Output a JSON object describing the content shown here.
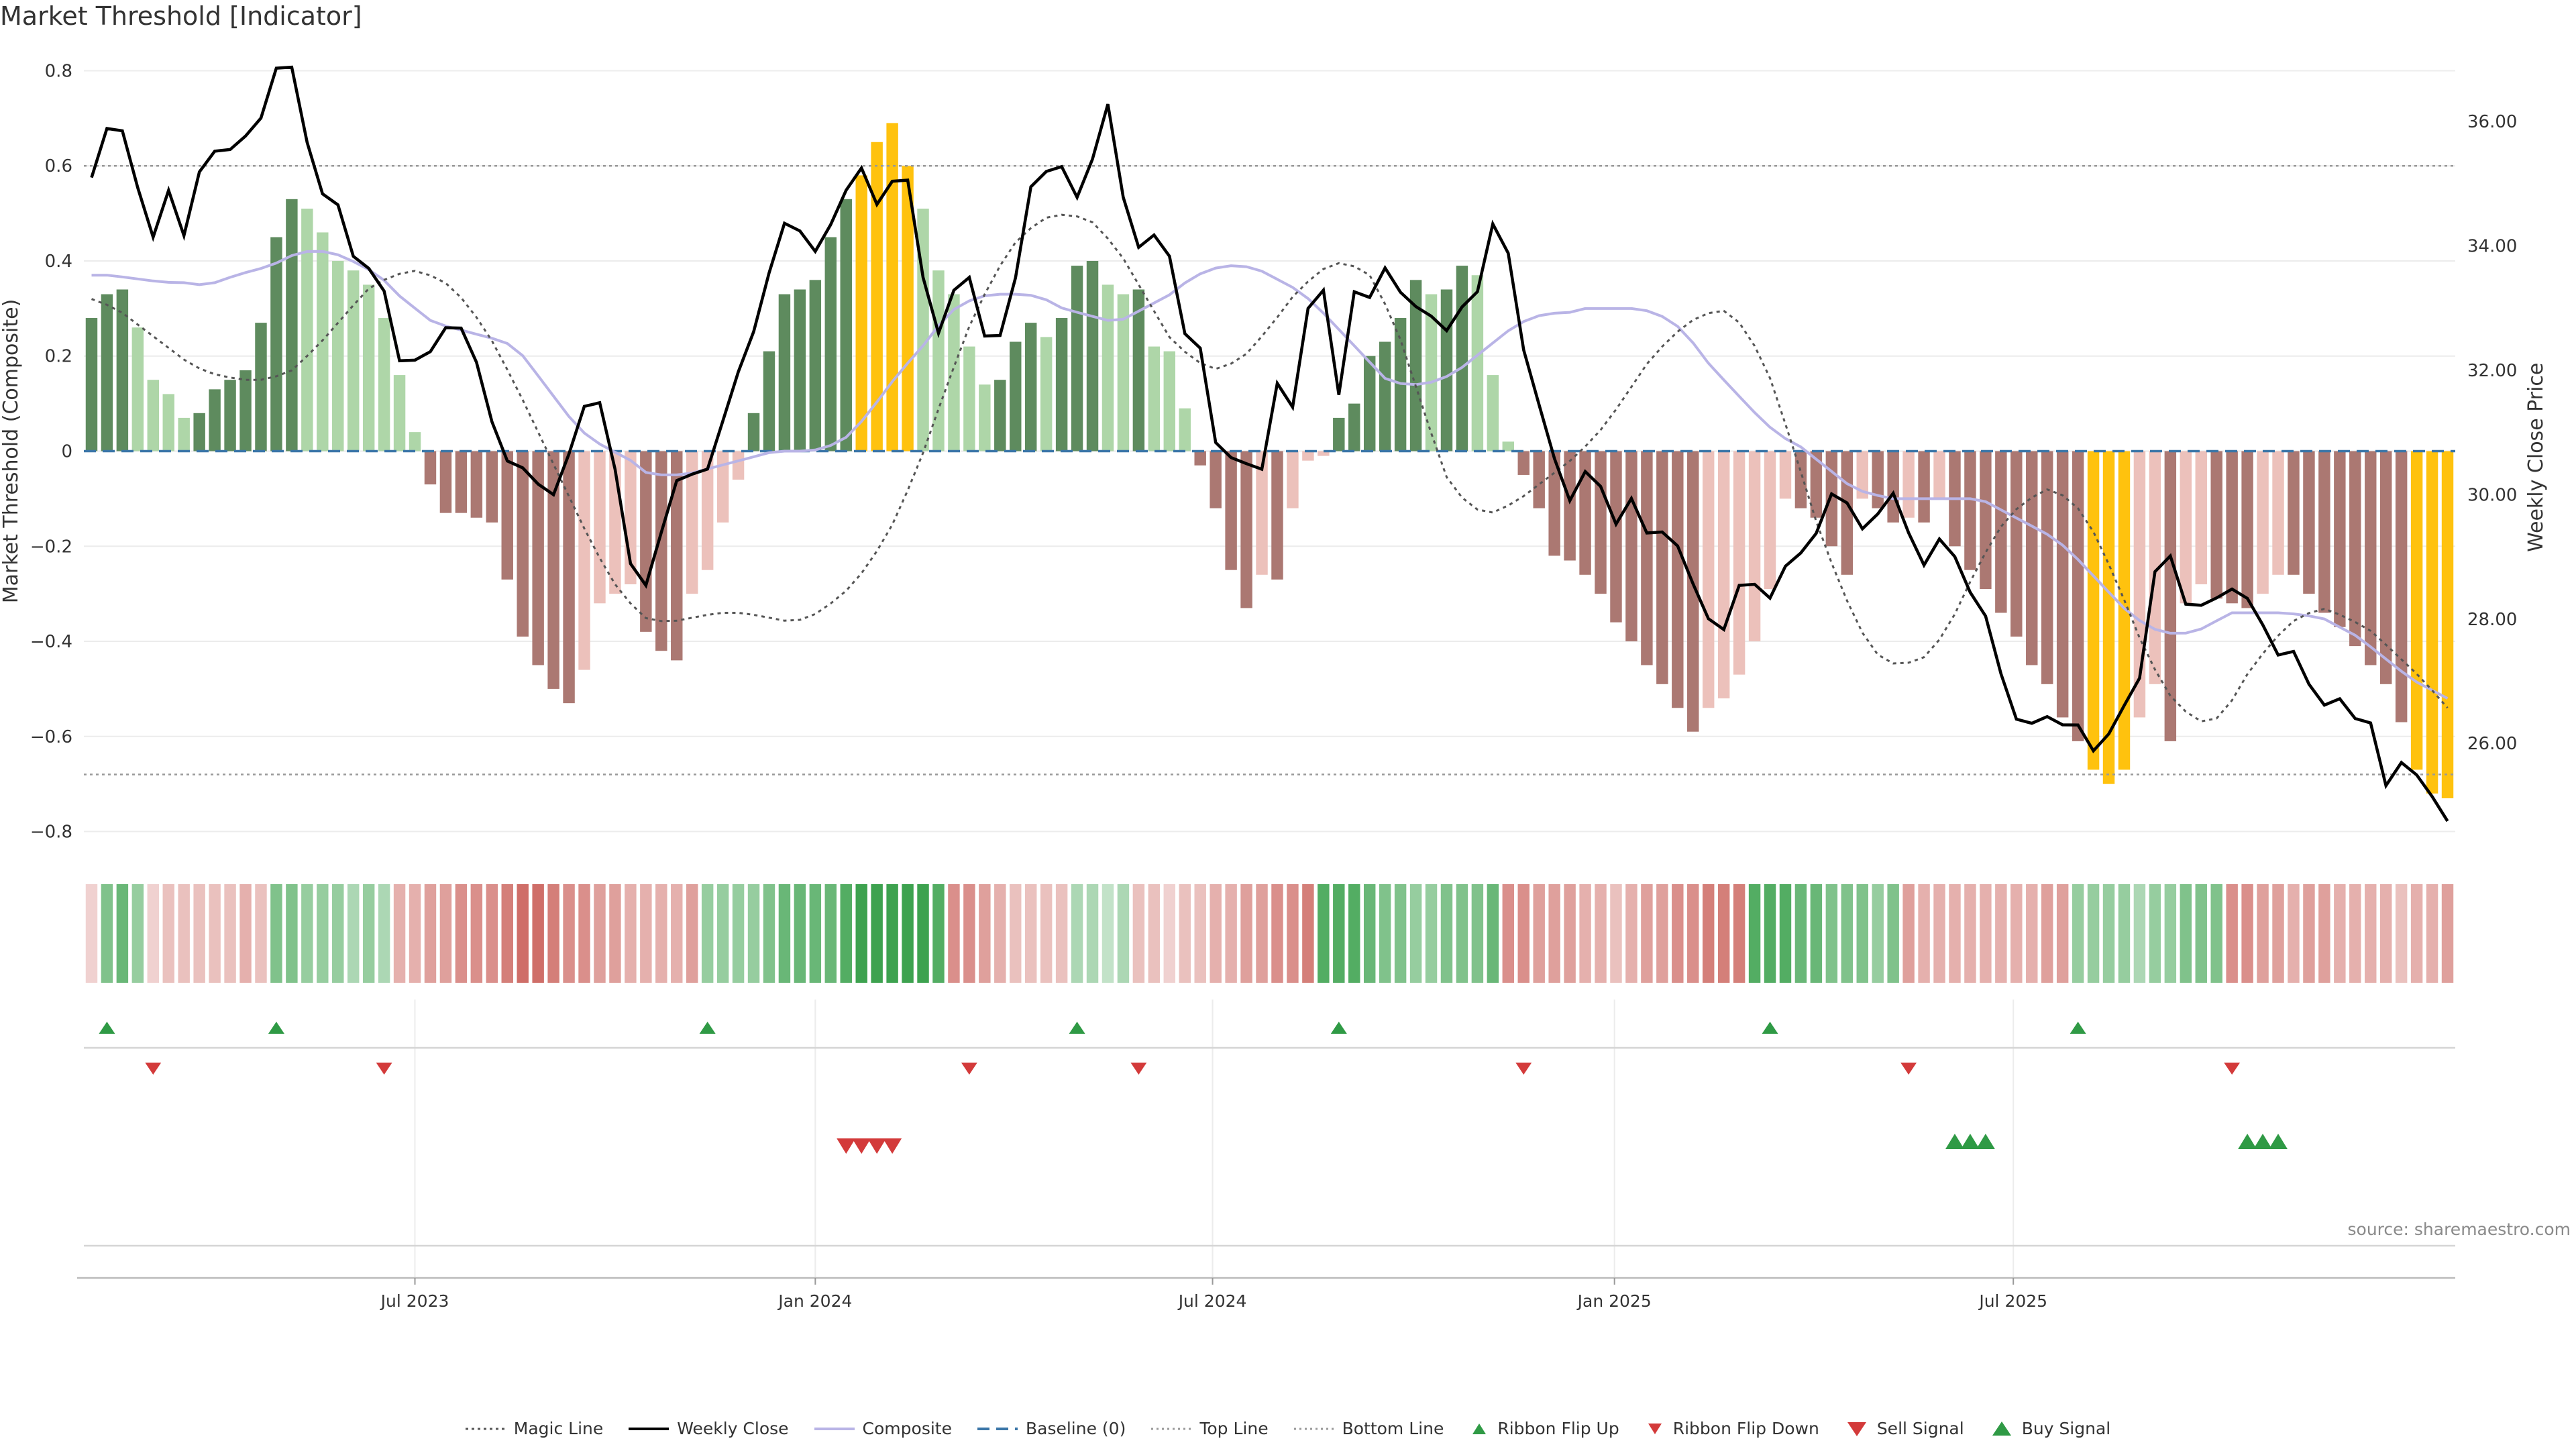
{
  "chart_data": {
    "type": "bar+line",
    "title": "Market Threshold [Indicator]",
    "source": "source: sharemaestro.com",
    "ylabel_left": "Market Threshold (Composite)",
    "ylabel_right": "Weekly Close Price",
    "ylim_left": [
      -0.85,
      0.85
    ],
    "ylim_right": [
      24.2,
      37.2
    ],
    "yticks_left": [
      "0.8",
      "0.6",
      "0.4",
      "0.2",
      "0",
      "−0.2",
      "−0.4",
      "−0.6",
      "−0.8"
    ],
    "yticks_left_values": [
      0.8,
      0.6,
      0.4,
      0.2,
      0,
      -0.2,
      -0.4,
      -0.6,
      -0.8
    ],
    "yticks_right": [
      "36.00",
      "34.00",
      "32.00",
      "30.00",
      "28.00",
      "26.00"
    ],
    "yticks_right_values": [
      36,
      34,
      32,
      30,
      28,
      26
    ],
    "xticks": [
      "Jul 2023",
      "Jan 2024",
      "Jul 2024",
      "Jan 2025",
      "Jul 2025"
    ],
    "xtick_weeks": [
      21.5,
      47.5,
      73.3,
      99.4,
      125.3
    ],
    "top_line": 0.6,
    "bottom_line": -0.68,
    "baseline": 0,
    "composite_bars": [
      0.28,
      0.33,
      0.34,
      0.26,
      0.15,
      0.12,
      0.07,
      0.08,
      0.13,
      0.15,
      0.17,
      0.27,
      0.45,
      0.53,
      0.51,
      0.46,
      0.4,
      0.38,
      0.35,
      0.28,
      0.16,
      0.04,
      -0.07,
      -0.13,
      -0.13,
      -0.14,
      -0.15,
      -0.27,
      -0.39,
      -0.45,
      -0.5,
      -0.53,
      -0.46,
      -0.32,
      -0.3,
      -0.28,
      -0.38,
      -0.42,
      -0.44,
      -0.3,
      -0.25,
      -0.15,
      -0.06,
      0.08,
      0.21,
      0.33,
      0.34,
      0.36,
      0.45,
      0.53,
      0.58,
      0.65,
      0.69,
      0.6,
      0.51,
      0.38,
      0.33,
      0.22,
      0.14,
      0.15,
      0.23,
      0.27,
      0.24,
      0.28,
      0.39,
      0.4,
      0.35,
      0.33,
      0.34,
      0.22,
      0.21,
      0.09,
      -0.03,
      -0.12,
      -0.25,
      -0.33,
      -0.26,
      -0.27,
      -0.12,
      -0.02,
      -0.01,
      0.07,
      0.1,
      0.2,
      0.23,
      0.28,
      0.36,
      0.33,
      0.34,
      0.39,
      0.37,
      0.16,
      0.02,
      -0.05,
      -0.12,
      -0.22,
      -0.23,
      -0.26,
      -0.3,
      -0.36,
      -0.4,
      -0.45,
      -0.49,
      -0.54,
      -0.59,
      -0.54,
      -0.52,
      -0.47,
      -0.4,
      -0.29,
      -0.1,
      -0.12,
      -0.14,
      -0.2,
      -0.26,
      -0.1,
      -0.12,
      -0.15,
      -0.14,
      -0.15,
      -0.1,
      -0.2,
      -0.25,
      -0.29,
      -0.34,
      -0.39,
      -0.45,
      -0.49,
      -0.56,
      -0.61,
      -0.67,
      -0.7,
      -0.67,
      -0.56,
      -0.49,
      -0.61,
      -0.32,
      -0.28,
      -0.31,
      -0.32,
      -0.33,
      -0.3,
      -0.26,
      -0.26,
      -0.3,
      -0.34,
      -0.37,
      -0.41,
      -0.45,
      -0.49,
      -0.57,
      -0.67,
      -0.72,
      -0.73
    ],
    "weekly_close": [
      35.1,
      35.9,
      35.85,
      34.9,
      34.1,
      34.95,
      34.1,
      35.3,
      35.55,
      35.55,
      35.8,
      36.1,
      37.0,
      36.85,
      35.4,
      34.7,
      34.65,
      33.6,
      33.65,
      33.15,
      31.8,
      32.3,
      32.3,
      32.85,
      32.6,
      31.9,
      30.8,
      30.4,
      30.45,
      30.0,
      30.0,
      31.1,
      31.65,
      31.35,
      29.65,
      28.25,
      28.8,
      29.95,
      30.5,
      30.15,
      30.7,
      31.75,
      32.25,
      33.1,
      34.2,
      34.6,
      33.7,
      34.25,
      34.5,
      35.6,
      34.6,
      34.8,
      35.55,
      33.95,
      32.4,
      33.1,
      33.8,
      32.6,
      32.4,
      33.1,
      34.9,
      35.15,
      35.4,
      34.7,
      35.2,
      36.5,
      34.9,
      33.95,
      34.2,
      33.95,
      32.6,
      32.45,
      30.85,
      30.6,
      30.5,
      30.4,
      31.8,
      31.4,
      33.05,
      33.3,
      31.5,
      33.4,
      33.15,
      33.7,
      33.2,
      33.0,
      32.85,
      32.6,
      33.1,
      33.3,
      34.6,
      33.7,
      31.95,
      31.3,
      30.35,
      29.75,
      30.6,
      29.95,
      29.35,
      30.2,
      29.0,
      29.6,
      28.95,
      28.35,
      27.8,
      27.85,
      29.0,
      28.25,
      28.4,
      29.2,
      28.95,
      29.75,
      30.25,
      29.5,
      29.4,
      30.0,
      30.05,
      28.6,
      29.2,
      29.4,
      28.45,
      28.4,
      27.5,
      26.5,
      26.2,
      26.55,
      26.2,
      26.5,
      25.85,
      25.95,
      26.65,
      26.5,
      28.6,
      29.25,
      28.25,
      28.2,
      28.3,
      28.5,
      28.4,
      28.0,
      27.4,
      27.55,
      27.0,
      26.6,
      26.75,
      26.4,
      26.4,
      25.3,
      25.7,
      25.5,
      25.15,
      24.75
    ],
    "composite_line": [
      0.37,
      0.37,
      0.365,
      0.36,
      0.355,
      0.355,
      0.35,
      0.355,
      0.37,
      0.38,
      0.39,
      0.41,
      0.42,
      0.42,
      0.41,
      0.39,
      0.37,
      0.33,
      0.3,
      0.27,
      0.26,
      0.25,
      0.24,
      0.23,
      0.2,
      0.15,
      0.1,
      0.05,
      0.02,
      0.0,
      -0.02,
      -0.05,
      -0.05,
      -0.05,
      -0.04,
      -0.03,
      -0.02,
      -0.01,
      0.0,
      0.0,
      0.0,
      0.01,
      0.03,
      0.07,
      0.12,
      0.17,
      0.21,
      0.26,
      0.3,
      0.32,
      0.33,
      0.33,
      0.33,
      0.32,
      0.3,
      0.29,
      0.28,
      0.27,
      0.29,
      0.31,
      0.33,
      0.36,
      0.38,
      0.39,
      0.39,
      0.38,
      0.36,
      0.34,
      0.31,
      0.27,
      0.23,
      0.19,
      0.15,
      0.14,
      0.14,
      0.15,
      0.17,
      0.2,
      0.23,
      0.26,
      0.28,
      0.29,
      0.29,
      0.3,
      0.3,
      0.3,
      0.3,
      0.29,
      0.27,
      0.23,
      0.18,
      0.14,
      0.1,
      0.06,
      0.03,
      0.01,
      -0.02,
      -0.05,
      -0.08,
      -0.09,
      -0.1,
      -0.1,
      -0.1,
      -0.1,
      -0.1,
      -0.1,
      -0.12,
      -0.14,
      -0.16,
      -0.18,
      -0.21,
      -0.25,
      -0.29,
      -0.33,
      -0.36,
      -0.38,
      -0.385,
      -0.38,
      -0.36,
      -0.34,
      -0.34,
      -0.34,
      -0.34,
      -0.345,
      -0.35,
      -0.37,
      -0.39,
      -0.42,
      -0.45,
      -0.48,
      -0.5,
      -0.52
    ],
    "magic_line": [
      0.32,
      0.3,
      0.26,
      0.22,
      0.18,
      0.16,
      0.15,
      0.15,
      0.17,
      0.22,
      0.28,
      0.34,
      0.37,
      0.38,
      0.36,
      0.31,
      0.23,
      0.13,
      0.02,
      -0.09,
      -0.2,
      -0.29,
      -0.35,
      -0.36,
      -0.35,
      -0.34,
      -0.34,
      -0.35,
      -0.36,
      -0.34,
      -0.3,
      -0.24,
      -0.15,
      -0.03,
      0.12,
      0.26,
      0.37,
      0.45,
      0.49,
      0.5,
      0.48,
      0.42,
      0.33,
      0.24,
      0.19,
      0.17,
      0.2,
      0.26,
      0.33,
      0.38,
      0.4,
      0.37,
      0.27,
      0.11,
      -0.05,
      -0.12,
      -0.13,
      -0.1,
      -0.06,
      -0.02,
      0.03,
      0.1,
      0.18,
      0.24,
      0.28,
      0.3,
      0.26,
      0.15,
      -0.01,
      -0.18,
      -0.31,
      -0.42,
      -0.45,
      -0.44,
      -0.38,
      -0.27,
      -0.17,
      -0.11,
      -0.08,
      -0.1,
      -0.18,
      -0.3,
      -0.43,
      -0.52,
      -0.57,
      -0.56,
      -0.47,
      -0.4,
      -0.35,
      -0.33,
      -0.35,
      -0.38,
      -0.43,
      -0.48,
      -0.54
    ],
    "ribbon_strength": [
      1,
      4,
      5,
      3,
      1,
      2,
      2,
      2,
      2,
      2,
      3,
      2,
      4,
      4,
      3,
      3,
      3,
      2,
      3,
      2,
      3,
      3,
      4,
      4,
      5,
      5,
      5,
      6,
      7,
      7,
      6,
      5,
      5,
      4,
      4,
      3,
      3,
      3,
      3,
      4,
      3,
      3,
      3,
      3,
      4,
      5,
      5,
      5,
      5,
      6,
      7,
      7,
      7,
      7,
      7,
      6,
      5,
      5,
      4,
      3,
      2,
      2,
      2,
      2,
      2,
      2,
      1,
      2,
      2,
      2,
      1,
      2,
      2,
      3,
      3,
      4,
      4,
      5,
      5,
      6,
      6,
      6,
      6,
      5,
      4,
      4,
      3,
      3,
      4,
      4,
      4,
      5,
      5,
      5,
      4,
      4,
      4,
      3,
      3,
      2,
      3,
      4,
      4,
      5,
      5,
      6,
      6,
      6,
      6,
      6,
      6,
      5,
      5,
      4,
      4,
      4,
      3,
      4,
      4,
      3,
      3,
      3,
      3,
      3,
      3,
      3,
      3,
      4,
      4,
      3,
      3,
      3,
      3,
      2,
      3,
      3,
      4,
      4,
      4,
      5,
      5,
      4,
      4,
      3,
      4,
      4,
      3,
      3,
      3,
      3,
      2,
      3,
      3,
      4
    ],
    "ribbon_sign": [
      -1,
      1,
      1,
      1,
      -1,
      -1,
      -1,
      -1,
      -1,
      -1,
      -1,
      -1,
      1,
      1,
      1,
      1,
      1,
      1,
      1,
      1,
      -1,
      -1,
      -1,
      -1,
      -1,
      -1,
      -1,
      -1,
      -1,
      -1,
      -1,
      -1,
      -1,
      -1,
      -1,
      -1,
      -1,
      -1,
      -1,
      -1,
      1,
      1,
      1,
      1,
      1,
      1,
      1,
      1,
      1,
      1,
      1,
      1,
      1,
      1,
      1,
      1,
      -1,
      -1,
      -1,
      -1,
      -1,
      -1,
      -1,
      -1,
      1,
      1,
      1,
      1,
      -1,
      -1,
      -1,
      -1,
      -1,
      -1,
      -1,
      -1,
      -1,
      -1,
      -1,
      -1,
      1,
      1,
      1,
      1,
      1,
      1,
      1,
      1,
      1,
      1,
      1,
      1,
      -1,
      -1,
      -1,
      -1,
      -1,
      -1,
      -1,
      -1,
      -1,
      -1,
      -1,
      -1,
      -1,
      -1,
      -1,
      -1,
      1,
      1,
      1,
      1,
      1,
      1,
      1,
      1,
      1,
      1,
      -1,
      -1,
      -1,
      -1,
      -1,
      -1,
      -1,
      -1,
      -1,
      -1,
      -1,
      1,
      1,
      1,
      1,
      1,
      1,
      1,
      1,
      1,
      1,
      -1,
      -1,
      -1,
      -1,
      -1,
      -1,
      -1,
      -1,
      -1,
      -1,
      -1,
      -1,
      -1,
      -1,
      -1
    ],
    "ribbon_flip_up_weeks": [
      1,
      12,
      40,
      64,
      81,
      109,
      129
    ],
    "ribbon_flip_down_weeks": [
      4,
      19,
      57,
      68,
      93,
      118,
      139
    ],
    "sell_signal_weeks": [
      49,
      50,
      51,
      52
    ],
    "buy_signal_weeks": [
      121,
      122,
      123,
      140,
      141,
      142
    ],
    "colors": {
      "green_dark": "#5e8b5e",
      "green_light": "#aed6a8",
      "red_dark": "#ab7872",
      "red_light": "#ecc1bb",
      "gold": "#ffc20e",
      "close_line": "#000000",
      "composite_line": "#b9b4e6",
      "magic_line": "#555555",
      "baseline": "#3b76a8",
      "ribbon_green": "#3da24f",
      "ribbon_red": "#cf6e68",
      "signal_green": "#2f9a45",
      "signal_red": "#d33a3a"
    }
  },
  "legend": [
    {
      "label": "Magic Line",
      "icon": "dotted-line"
    },
    {
      "label": "Weekly Close",
      "icon": "solid-line"
    },
    {
      "label": "Composite",
      "icon": "lavender-line"
    },
    {
      "label": "Baseline (0)",
      "icon": "dashed-line"
    },
    {
      "label": "Top Line",
      "icon": "dotted-line-light"
    },
    {
      "label": "Bottom Line",
      "icon": "dotted-line-light"
    },
    {
      "label": "Ribbon Flip Up",
      "icon": "triangle-up-small"
    },
    {
      "label": "Ribbon Flip Down",
      "icon": "triangle-down-small"
    },
    {
      "label": "Sell Signal",
      "icon": "triangle-down-large"
    },
    {
      "label": "Buy Signal",
      "icon": "triangle-up-large"
    }
  ]
}
